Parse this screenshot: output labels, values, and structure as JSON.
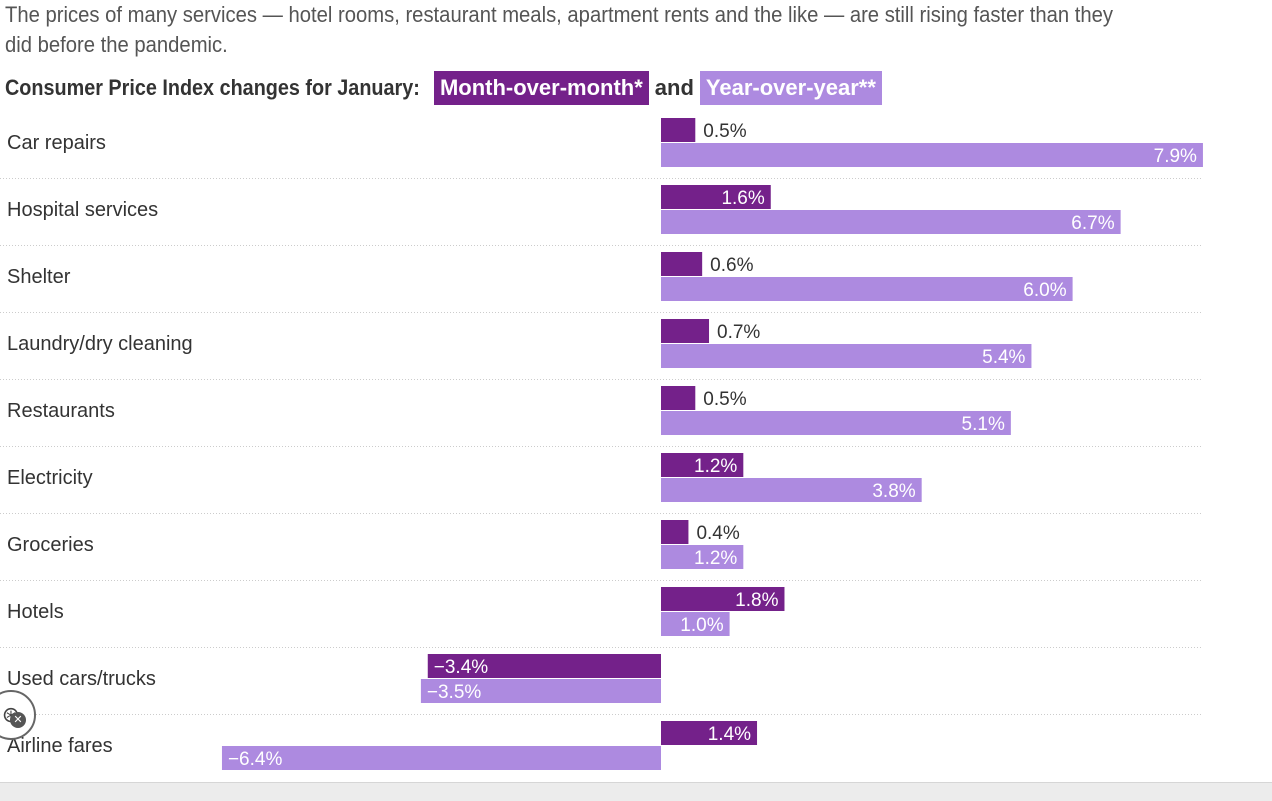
{
  "subtitle": "The prices of many services — hotel rooms, restaurant meals, apartment rents and the like — are still rising faster than they did before the pandemic.",
  "legend": {
    "lead": "Consumer Price Index changes for January:",
    "mom_label": "Month-over-month*",
    "and": "and",
    "yoy_label": "Year-over-year**"
  },
  "colors": {
    "mom": "#74218a",
    "yoy": "#ad8ae0",
    "rule": "#cccccc"
  },
  "chart_data": {
    "type": "bar",
    "orientation": "horizontal",
    "title": "Consumer Price Index changes for January",
    "categories": [
      "Car repairs",
      "Hospital services",
      "Shelter",
      "Laundry/dry cleaning",
      "Restaurants",
      "Electricity",
      "Groceries",
      "Hotels",
      "Used cars/trucks",
      "Airline fares"
    ],
    "series": [
      {
        "name": "Month-over-month*",
        "values": [
          0.5,
          1.6,
          0.6,
          0.7,
          0.5,
          1.2,
          0.4,
          1.8,
          -3.4,
          1.4
        ],
        "labels": [
          "0.5%",
          "1.6%",
          "0.6%",
          "0.7%",
          "0.5%",
          "1.2%",
          "0.4%",
          "1.8%",
          "−3.4%",
          "1.4%"
        ]
      },
      {
        "name": "Year-over-year**",
        "values": [
          7.9,
          6.7,
          6.0,
          5.4,
          5.1,
          3.8,
          1.2,
          1.0,
          -3.5,
          -6.4
        ],
        "labels": [
          "7.9%",
          "6.7%",
          "6.0%",
          "5.4%",
          "5.1%",
          "3.8%",
          "1.2%",
          "1.0%",
          "−3.5%",
          "−6.4%"
        ]
      }
    ],
    "xlim": [
      -7.0,
      8.0
    ],
    "grid": false,
    "legend_position": "top"
  },
  "icons": {
    "accessibility": "accessibility-icon",
    "close": "close-icon"
  }
}
